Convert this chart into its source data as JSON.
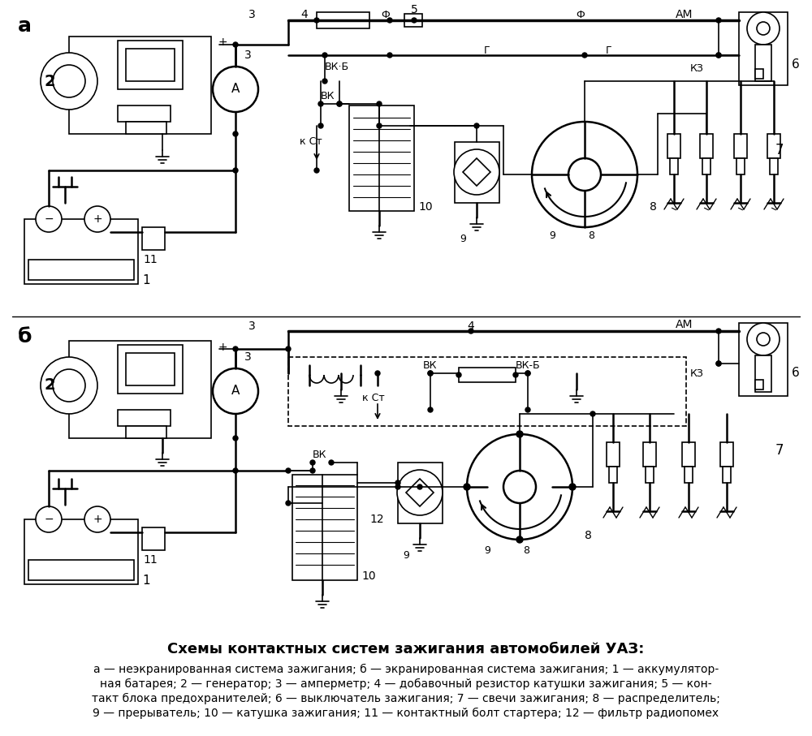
{
  "title": "Схемы контактных систем зажигания автомобилей УАЗ:",
  "cap1": "а — неэкранированная система зажигания; б — экранированная система зажигания; 1 — аккумулятор-",
  "cap2": "ная батарея; 2 — генератор; 3 — амперметр; 4 — добавочный резистор катушки зажигания; 5 — кон-",
  "cap3": "такт блока предохранителей; 6 — выключатель зажигания; 7 — свечи зажигания; 8 — распределитель;",
  "cap4": "9 — прерыватель; 10 — катушка зажигания; 11 — контактный болт стартера; 12 — фильтр радиопомех",
  "bg_color": "#ffffff"
}
